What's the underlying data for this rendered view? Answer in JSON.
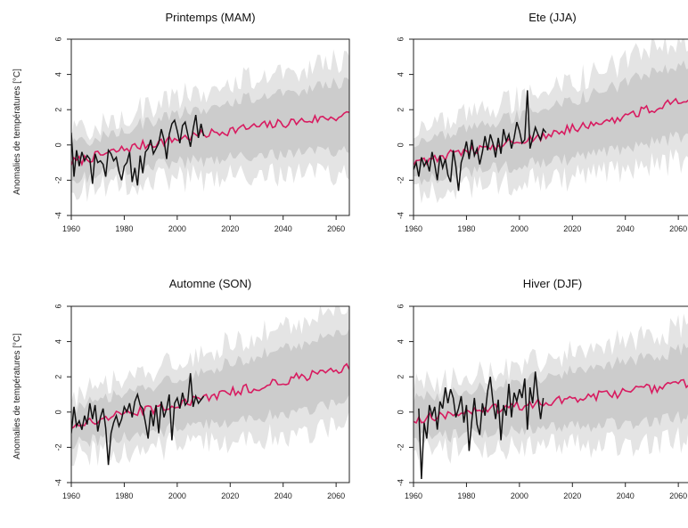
{
  "ylabel": "Anomalies de températures [°C]",
  "colors": {
    "ensemble_band": "#cccccc",
    "ensemble_band_outer": "#e4e4e4",
    "model_mean": "#d81b60",
    "observed": "#111111"
  },
  "chart_data": [
    {
      "type": "line",
      "title": "Printemps (MAM)",
      "xlabel": "",
      "ylabel": "Anomalies de températures [°C]",
      "xlim": [
        1960,
        2065
      ],
      "ylim": [
        -4,
        6
      ],
      "xticks": [
        "1960",
        "1980",
        "2000",
        "2020",
        "2040",
        "2060"
      ],
      "yticks": [
        "-4",
        "-2",
        "0",
        "2",
        "4",
        "6"
      ],
      "series": [
        {
          "role": "observed",
          "x": [
            1960,
            1961,
            1962,
            1963,
            1964,
            1965,
            1966,
            1967,
            1968,
            1969,
            1970,
            1971,
            1972,
            1973,
            1974,
            1975,
            1976,
            1977,
            1978,
            1979,
            1980,
            1981,
            1982,
            1983,
            1984,
            1985,
            1986,
            1987,
            1988,
            1989,
            1990,
            1991,
            1992,
            1993,
            1994,
            1995,
            1996,
            1997,
            1998,
            1999,
            2000,
            2001,
            2002,
            2003,
            2004,
            2005,
            2006,
            2007,
            2008,
            2009,
            2010
          ],
          "y": [
            0.7,
            -1.8,
            -0.3,
            -1.2,
            -0.4,
            -0.9,
            -0.6,
            -0.8,
            -2.2,
            -0.5,
            -1.0,
            -0.9,
            -1.1,
            -1.8,
            -0.3,
            -0.5,
            -0.9,
            -0.7,
            -1.5,
            -2.0,
            -1.2,
            -1.0,
            -0.4,
            -2.1,
            -1.3,
            -2.3,
            -0.6,
            -1.6,
            -0.4,
            -0.2,
            0.3,
            -0.5,
            -0.2,
            0.1,
            0.9,
            0.3,
            -0.8,
            0.6,
            1.2,
            1.4,
            0.8,
            0.1,
            1.1,
            1.3,
            0.6,
            -0.1,
            0.9,
            1.7,
            0.4,
            1.2,
            0.5
          ]
        },
        {
          "role": "model_mean",
          "start": 1960,
          "end": 2065,
          "base": [
            -1.0,
            -0.2,
            0.4,
            0.9,
            1.3,
            1.7
          ]
        }
      ],
      "band": {
        "start": 1960,
        "end": 2065,
        "center": [
          -1.0,
          -0.2,
          0.4,
          0.9,
          1.3,
          1.7
        ],
        "half_width": [
          1.6,
          1.9,
          2.3,
          2.7,
          3.0,
          3.2
        ]
      }
    },
    {
      "type": "line",
      "title": "Ete (JJA)",
      "xlabel": "",
      "ylabel": "",
      "xlim": [
        1960,
        2065
      ],
      "ylim": [
        -4,
        6
      ],
      "xticks": [
        "1960",
        "1980",
        "2000",
        "2020",
        "2040",
        "2060"
      ],
      "yticks": [
        "-4",
        "-2",
        "0",
        "2",
        "4",
        "6"
      ],
      "series": [
        {
          "role": "observed",
          "x": [
            1960,
            1961,
            1962,
            1963,
            1964,
            1965,
            1966,
            1967,
            1968,
            1969,
            1970,
            1971,
            1972,
            1973,
            1974,
            1975,
            1976,
            1977,
            1978,
            1979,
            1980,
            1981,
            1982,
            1983,
            1984,
            1985,
            1986,
            1987,
            1988,
            1989,
            1990,
            1991,
            1992,
            1993,
            1994,
            1995,
            1996,
            1997,
            1998,
            1999,
            2000,
            2001,
            2002,
            2003,
            2004,
            2005,
            2006,
            2007,
            2008,
            2009,
            2010
          ],
          "y": [
            -1.4,
            -1.0,
            -1.8,
            -0.7,
            -1.2,
            -0.9,
            -1.5,
            -0.4,
            -1.1,
            -2.0,
            -0.6,
            -1.3,
            -0.8,
            -1.7,
            -2.1,
            -0.3,
            -1.2,
            -2.6,
            -1.0,
            -0.5,
            0.2,
            -0.8,
            0.3,
            -0.6,
            -0.2,
            -1.1,
            -0.4,
            0.5,
            -0.3,
            0.6,
            0.1,
            -0.7,
            0.4,
            -0.5,
            0.9,
            0.2,
            0.6,
            -0.2,
            0.4,
            1.3,
            0.8,
            0.1,
            0.3,
            3.1,
            -0.2,
            0.4,
            1.0,
            0.6,
            0.3,
            0.9,
            0.7
          ]
        },
        {
          "role": "model_mean",
          "start": 1960,
          "end": 2065,
          "base": [
            -1.0,
            -0.3,
            0.3,
            1.0,
            1.8,
            2.7
          ]
        }
      ],
      "band": {
        "start": 1960,
        "end": 2065,
        "center": [
          -1.0,
          -0.3,
          0.3,
          1.0,
          1.8,
          2.7
        ],
        "half_width": [
          1.7,
          2.0,
          2.4,
          2.8,
          3.2,
          3.4
        ]
      }
    },
    {
      "type": "line",
      "title": "Automne (SON)",
      "xlabel": "",
      "ylabel": "Anomalies de températures [°C]",
      "xlim": [
        1960,
        2065
      ],
      "ylim": [
        -4,
        6
      ],
      "xticks": [
        "1960",
        "1980",
        "2000",
        "2020",
        "2040",
        "2060"
      ],
      "yticks": [
        "-4",
        "-2",
        "0",
        "2",
        "4",
        "6"
      ],
      "series": [
        {
          "role": "observed",
          "x": [
            1960,
            1961,
            1962,
            1963,
            1964,
            1965,
            1966,
            1967,
            1968,
            1969,
            1970,
            1971,
            1972,
            1973,
            1974,
            1975,
            1976,
            1977,
            1978,
            1979,
            1980,
            1981,
            1982,
            1983,
            1984,
            1985,
            1986,
            1987,
            1988,
            1989,
            1990,
            1991,
            1992,
            1993,
            1994,
            1995,
            1996,
            1997,
            1998,
            1999,
            2000,
            2001,
            2002,
            2003,
            2004,
            2005,
            2006,
            2007,
            2008,
            2009,
            2010
          ],
          "y": [
            -1.2,
            0.3,
            -0.8,
            -0.5,
            -1.0,
            -0.2,
            -0.7,
            0.5,
            -0.4,
            0.4,
            -1.1,
            -0.3,
            0.2,
            -0.9,
            -3.0,
            -1.2,
            -0.6,
            -0.2,
            -0.8,
            -0.4,
            0.3,
            0.0,
            0.5,
            -0.3,
            0.6,
            1.0,
            0.4,
            0.2,
            -0.6,
            -1.5,
            0.1,
            -0.8,
            0.4,
            -1.2,
            0.6,
            -0.3,
            0.2,
            1.0,
            -1.6,
            0.5,
            0.8,
            0.2,
            1.1,
            0.4,
            0.6,
            2.2,
            0.3,
            0.9,
            0.5,
            0.7,
            0.9
          ]
        },
        {
          "role": "model_mean",
          "start": 1960,
          "end": 2065,
          "base": [
            -0.8,
            -0.1,
            0.5,
            1.2,
            1.9,
            2.6
          ]
        }
      ],
      "band": {
        "start": 1960,
        "end": 2065,
        "center": [
          -0.8,
          -0.1,
          0.5,
          1.2,
          1.9,
          2.6
        ],
        "half_width": [
          1.7,
          2.0,
          2.4,
          2.8,
          3.1,
          3.3
        ]
      }
    },
    {
      "type": "line",
      "title": "Hiver (DJF)",
      "xlabel": "",
      "ylabel": "",
      "xlim": [
        1960,
        2065
      ],
      "ylim": [
        -4,
        6
      ],
      "xticks": [
        "1960",
        "1980",
        "2000",
        "2020",
        "2040",
        "2060"
      ],
      "yticks": [
        "-4",
        "-2",
        "0",
        "2",
        "4",
        "6"
      ],
      "series": [
        {
          "role": "observed",
          "x": [
            1962,
            1963,
            1964,
            1965,
            1966,
            1967,
            1968,
            1969,
            1970,
            1971,
            1972,
            1973,
            1974,
            1975,
            1976,
            1977,
            1978,
            1979,
            1980,
            1981,
            1982,
            1983,
            1984,
            1985,
            1986,
            1987,
            1988,
            1989,
            1990,
            1991,
            1992,
            1993,
            1994,
            1995,
            1996,
            1997,
            1998,
            1999,
            2000,
            2001,
            2002,
            2003,
            2004,
            2005,
            2006,
            2007,
            2008,
            2009
          ],
          "y": [
            0.2,
            -3.8,
            -0.6,
            -1.5,
            0.4,
            -0.2,
            0.3,
            -1.0,
            0.6,
            0.2,
            1.4,
            0.5,
            1.3,
            0.8,
            -0.3,
            0.2,
            0.9,
            -0.6,
            0.4,
            -2.2,
            -0.5,
            0.8,
            -0.7,
            -1.3,
            0.5,
            -0.2,
            1.2,
            2.0,
            0.6,
            -0.4,
            0.7,
            -1.6,
            0.4,
            -0.2,
            1.6,
            -0.3,
            1.1,
            0.6,
            1.3,
            0.8,
            1.9,
            -1.0,
            1.4,
            0.5,
            2.3,
            0.8,
            -0.4,
            0.8
          ]
        },
        {
          "role": "model_mean",
          "start": 1960,
          "end": 2065,
          "base": [
            -0.4,
            0.0,
            0.4,
            0.8,
            1.2,
            1.7
          ]
        }
      ],
      "band": {
        "start": 1960,
        "end": 2065,
        "center": [
          -0.4,
          0.0,
          0.4,
          0.8,
          1.2,
          1.7
        ],
        "half_width": [
          1.8,
          2.1,
          2.4,
          2.7,
          3.0,
          3.2
        ]
      }
    }
  ]
}
